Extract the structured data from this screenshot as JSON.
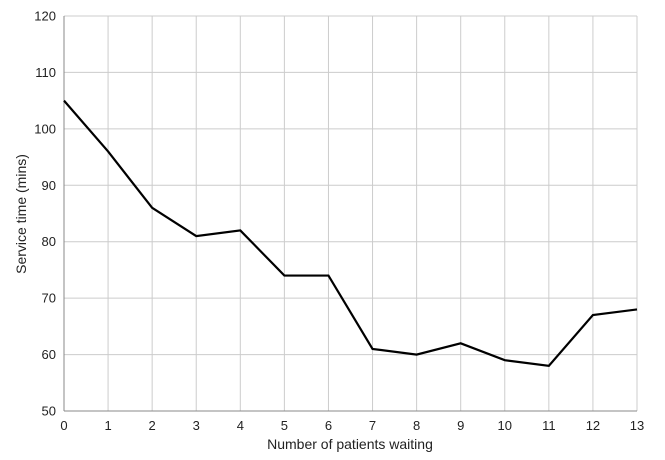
{
  "chart_data": {
    "type": "line",
    "title": "",
    "xlabel": "Number of patients waiting",
    "ylabel": "Service time (mins)",
    "xlim": [
      0,
      13
    ],
    "ylim": [
      50,
      120
    ],
    "x_ticks": [
      0,
      1,
      2,
      3,
      4,
      5,
      6,
      7,
      8,
      9,
      10,
      11,
      12,
      13
    ],
    "y_ticks": [
      50,
      60,
      70,
      80,
      90,
      100,
      110,
      120
    ],
    "grid": true,
    "legend": "none",
    "series": [
      {
        "color": "#000000",
        "x": [
          0,
          1,
          2,
          3,
          4,
          5,
          6,
          7,
          8,
          9,
          10,
          11,
          12,
          13
        ],
        "y": [
          105,
          96,
          86,
          81,
          82,
          74,
          74,
          61,
          60,
          62,
          59,
          58,
          67,
          68
        ]
      }
    ],
    "grid_color": "#cccccc",
    "axis_color": "#888888"
  }
}
